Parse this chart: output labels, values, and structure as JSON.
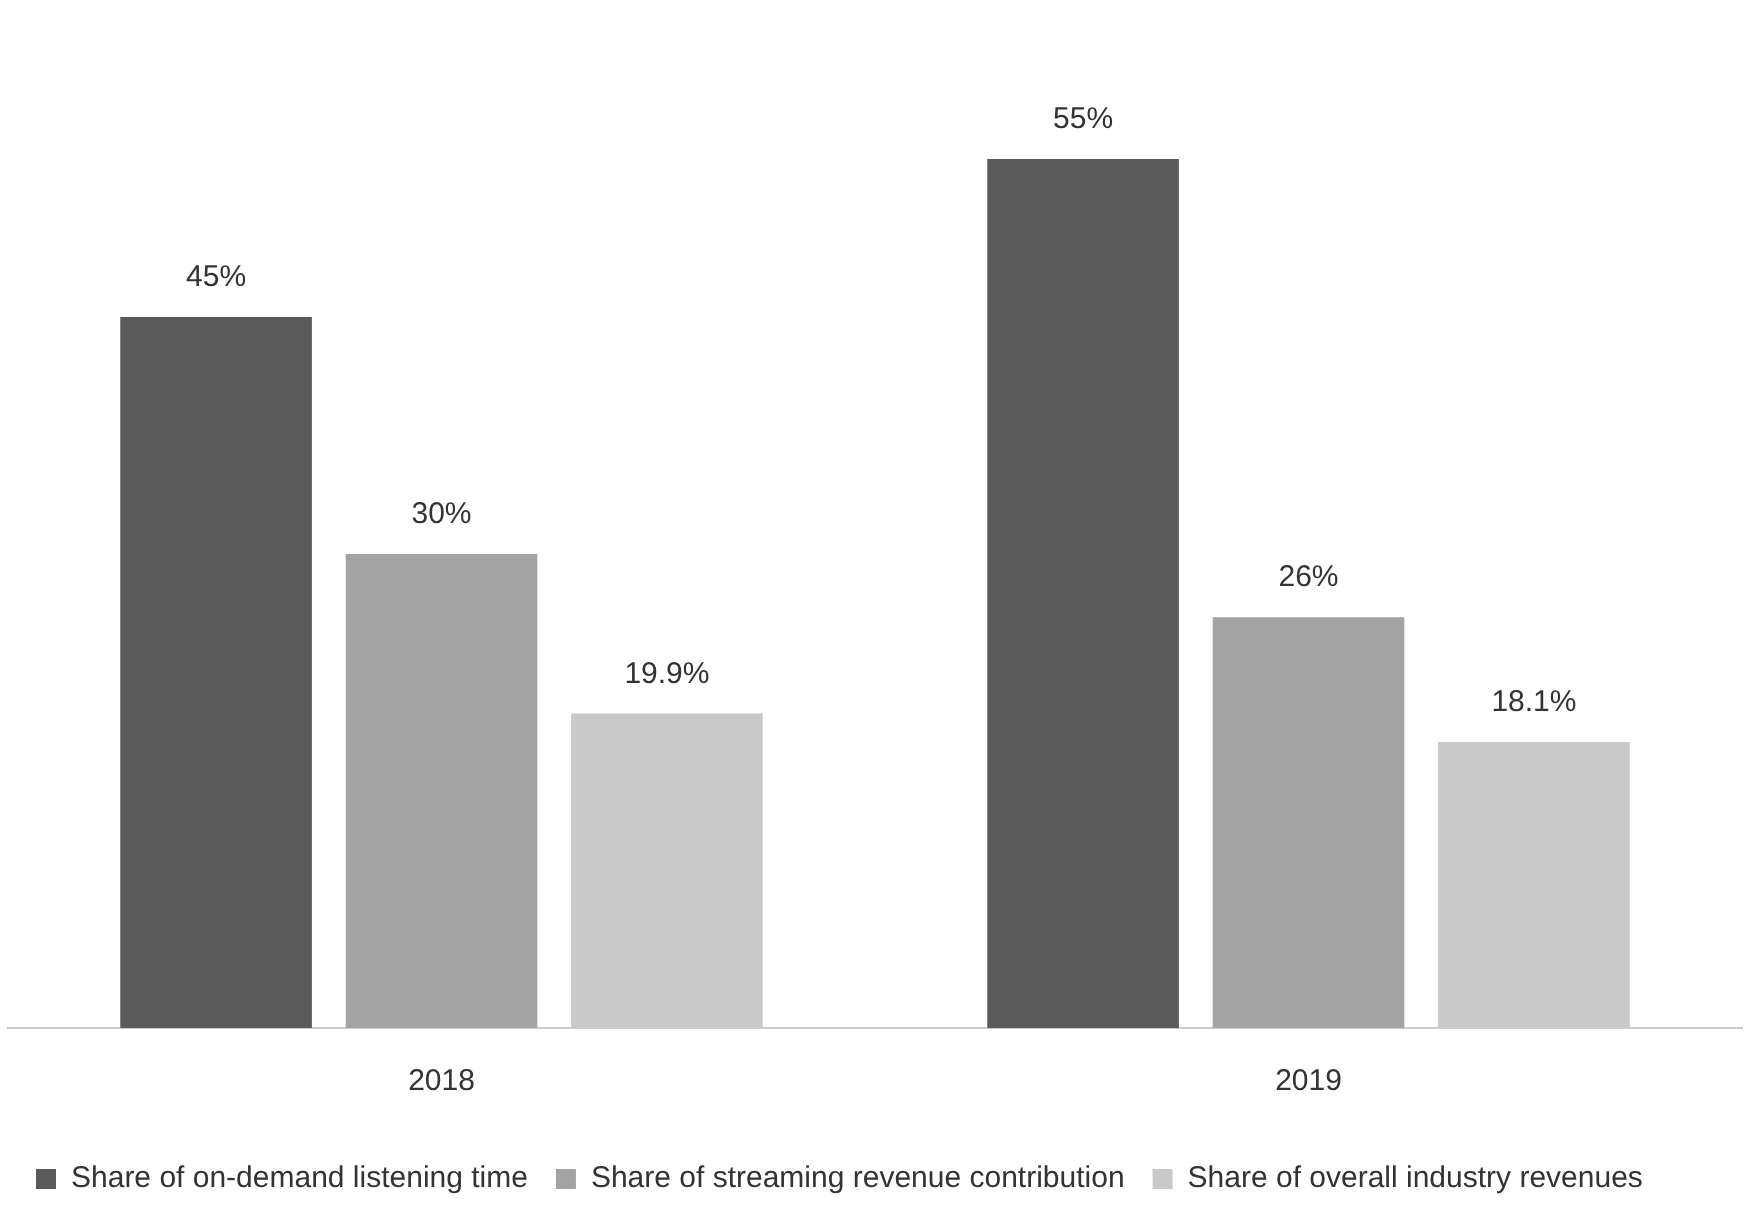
{
  "chart_data": {
    "type": "bar",
    "categories": [
      "2018",
      "2019"
    ],
    "series": [
      {
        "name": "Share of on-demand listening time",
        "color": "#5a5a5a",
        "values": [
          45,
          55
        ],
        "value_labels": [
          "45%",
          "55%"
        ]
      },
      {
        "name": "Share of streaming revenue contribution",
        "color": "#a3a3a3",
        "values": [
          30,
          26
        ],
        "value_labels": [
          "30%",
          "26%"
        ]
      },
      {
        "name": "Share of overall industry revenues",
        "color": "#c9c9c9",
        "values": [
          19.9,
          18.1
        ],
        "value_labels": [
          "19.9%",
          "18.1%"
        ]
      }
    ],
    "grid": false,
    "legend": "bottom"
  }
}
